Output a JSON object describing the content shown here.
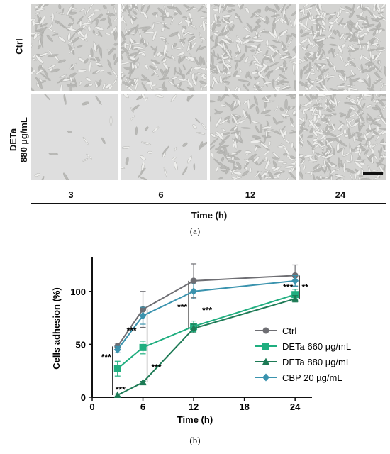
{
  "panel_a": {
    "row_labels": [
      "Ctrl",
      "DETa\n880 µg/mL"
    ],
    "time_labels": [
      "3",
      "6",
      "12",
      "24"
    ],
    "axis_title": "Time (h)",
    "caption": "(a)"
  },
  "panel_b": {
    "caption": "(b)",
    "sig_labels": [
      "***",
      "***",
      "***",
      "***",
      "***",
      "***",
      "***",
      "**"
    ]
  },
  "chart_data": {
    "type": "line",
    "title": "",
    "xlabel": "Time (h)",
    "ylabel": "Cells adhesion (%)",
    "xlim": [
      0,
      26
    ],
    "ylim": [
      0,
      130
    ],
    "xticks": [
      0,
      6,
      12,
      18,
      24
    ],
    "yticks": [
      0,
      50,
      100
    ],
    "grid": false,
    "legend_position": "right",
    "x": [
      3,
      6,
      12,
      24
    ],
    "series": [
      {
        "name": "Ctrl",
        "values": [
          48,
          83,
          110,
          115
        ],
        "errors": [
          3,
          17,
          16,
          10
        ],
        "color": "#6e6e73",
        "marker": "circle"
      },
      {
        "name": "DETa 660 µg/mL",
        "values": [
          27,
          47,
          67,
          97
        ],
        "errors": [
          7,
          6,
          5,
          5
        ],
        "color": "#1fae7f",
        "marker": "square"
      },
      {
        "name": "DETa 880 µg/mL",
        "values": [
          2,
          14,
          65,
          93
        ],
        "errors": [
          1,
          1,
          4,
          3
        ],
        "color": "#1d7a55",
        "marker": "triangle"
      },
      {
        "name": "CBP 20 µg/mL",
        "values": [
          45,
          77,
          100,
          110
        ],
        "errors": [
          3,
          8,
          7,
          5
        ],
        "color": "#3a93ae",
        "marker": "diamond"
      }
    ]
  }
}
